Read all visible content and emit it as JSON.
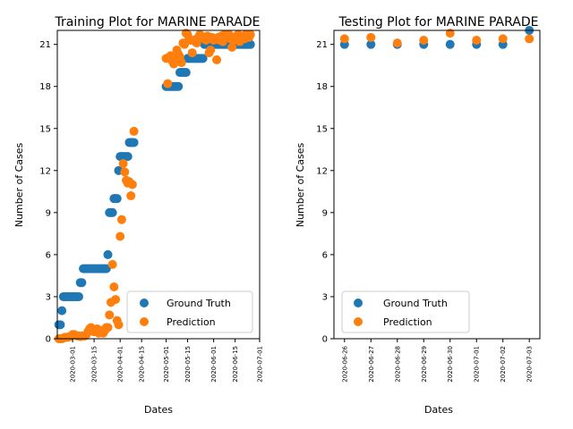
{
  "colors": {
    "ground_truth": "#1f77b4",
    "prediction": "#ff7f0e"
  },
  "chart_data": [
    {
      "type": "scatter",
      "title": "Training Plot for MARINE PARADE",
      "xlabel": "Dates",
      "ylabel": "Number of Cases",
      "ylim": [
        0,
        22
      ],
      "yticks": [
        0,
        3,
        6,
        9,
        12,
        15,
        18,
        21
      ],
      "xlim": [
        "2020-02-20",
        "2020-07-01"
      ],
      "xticks": [
        "2020-03-01",
        "2020-03-15",
        "2020-04-01",
        "2020-04-15",
        "2020-05-01",
        "2020-05-15",
        "2020-06-01",
        "2020-06-15",
        "2020-07-01"
      ],
      "legend": {
        "position": "lower-right",
        "entries": [
          "Ground Truth",
          "Prediction"
        ]
      },
      "series": [
        {
          "name": "Ground Truth",
          "color": "#1f77b4",
          "points": [
            [
              "2020-02-21",
              1
            ],
            [
              "2020-02-22",
              1
            ],
            [
              "2020-02-23",
              2
            ],
            [
              "2020-02-24",
              3
            ],
            [
              "2020-02-25",
              3
            ],
            [
              "2020-02-26",
              3
            ],
            [
              "2020-02-27",
              3
            ],
            [
              "2020-02-28",
              3
            ],
            [
              "2020-02-29",
              3
            ],
            [
              "2020-03-01",
              3
            ],
            [
              "2020-03-02",
              3
            ],
            [
              "2020-03-03",
              3
            ],
            [
              "2020-03-04",
              3
            ],
            [
              "2020-03-05",
              3
            ],
            [
              "2020-03-06",
              4
            ],
            [
              "2020-03-07",
              4
            ],
            [
              "2020-03-08",
              5
            ],
            [
              "2020-03-09",
              5
            ],
            [
              "2020-03-10",
              5
            ],
            [
              "2020-03-11",
              5
            ],
            [
              "2020-03-12",
              5
            ],
            [
              "2020-03-13",
              5
            ],
            [
              "2020-03-14",
              5
            ],
            [
              "2020-03-15",
              5
            ],
            [
              "2020-03-16",
              5
            ],
            [
              "2020-03-17",
              5
            ],
            [
              "2020-03-18",
              5
            ],
            [
              "2020-03-19",
              5
            ],
            [
              "2020-03-20",
              5
            ],
            [
              "2020-03-21",
              5
            ],
            [
              "2020-03-22",
              5
            ],
            [
              "2020-03-23",
              5
            ],
            [
              "2020-03-24",
              6
            ],
            [
              "2020-03-25",
              9
            ],
            [
              "2020-03-26",
              9
            ],
            [
              "2020-03-27",
              9
            ],
            [
              "2020-03-28",
              10
            ],
            [
              "2020-03-29",
              10
            ],
            [
              "2020-03-30",
              10
            ],
            [
              "2020-03-31",
              12
            ],
            [
              "2020-04-01",
              13
            ],
            [
              "2020-04-02",
              13
            ],
            [
              "2020-04-03",
              13
            ],
            [
              "2020-04-04",
              13
            ],
            [
              "2020-04-05",
              13
            ],
            [
              "2020-04-06",
              13
            ],
            [
              "2020-04-07",
              14
            ],
            [
              "2020-04-08",
              14
            ],
            [
              "2020-04-09",
              14
            ],
            [
              "2020-04-10",
              14
            ],
            [
              "2020-05-01",
              18
            ],
            [
              "2020-05-02",
              18
            ],
            [
              "2020-05-03",
              18
            ],
            [
              "2020-05-04",
              18
            ],
            [
              "2020-05-05",
              18
            ],
            [
              "2020-05-06",
              18
            ],
            [
              "2020-05-07",
              18
            ],
            [
              "2020-05-08",
              18
            ],
            [
              "2020-05-09",
              18
            ],
            [
              "2020-05-10",
              19
            ],
            [
              "2020-05-11",
              19
            ],
            [
              "2020-05-12",
              19
            ],
            [
              "2020-05-13",
              19
            ],
            [
              "2020-05-14",
              19
            ],
            [
              "2020-05-15",
              20
            ],
            [
              "2020-05-16",
              20
            ],
            [
              "2020-05-17",
              20
            ],
            [
              "2020-05-18",
              20
            ],
            [
              "2020-05-19",
              20
            ],
            [
              "2020-05-20",
              20
            ],
            [
              "2020-05-21",
              20
            ],
            [
              "2020-05-22",
              20
            ],
            [
              "2020-05-23",
              20
            ],
            [
              "2020-05-24",
              20
            ],
            [
              "2020-05-25",
              20
            ],
            [
              "2020-05-26",
              21
            ],
            [
              "2020-05-27",
              21
            ],
            [
              "2020-05-28",
              21
            ],
            [
              "2020-05-29",
              21
            ],
            [
              "2020-05-30",
              21
            ],
            [
              "2020-05-31",
              21
            ],
            [
              "2020-06-01",
              21
            ],
            [
              "2020-06-02",
              21
            ],
            [
              "2020-06-03",
              21
            ],
            [
              "2020-06-04",
              21
            ],
            [
              "2020-06-05",
              21
            ],
            [
              "2020-06-06",
              21
            ],
            [
              "2020-06-07",
              21
            ],
            [
              "2020-06-08",
              21
            ],
            [
              "2020-06-09",
              21
            ],
            [
              "2020-06-10",
              21
            ],
            [
              "2020-06-11",
              21
            ],
            [
              "2020-06-12",
              21
            ],
            [
              "2020-06-13",
              21
            ],
            [
              "2020-06-14",
              21
            ],
            [
              "2020-06-15",
              21
            ],
            [
              "2020-06-16",
              21
            ],
            [
              "2020-06-17",
              21
            ],
            [
              "2020-06-18",
              21
            ],
            [
              "2020-06-19",
              21
            ],
            [
              "2020-06-20",
              21
            ],
            [
              "2020-06-21",
              21
            ],
            [
              "2020-06-22",
              21
            ],
            [
              "2020-06-23",
              21
            ],
            [
              "2020-06-24",
              21
            ],
            [
              "2020-06-25",
              21
            ]
          ]
        },
        {
          "name": "Prediction",
          "color": "#ff7f0e",
          "points": [
            [
              "2020-02-21",
              0
            ],
            [
              "2020-02-22",
              0
            ],
            [
              "2020-02-23",
              0
            ],
            [
              "2020-02-24",
              0.05
            ],
            [
              "2020-02-25",
              0.1
            ],
            [
              "2020-02-26",
              0.1
            ],
            [
              "2020-02-27",
              0.1
            ],
            [
              "2020-02-28",
              0.15
            ],
            [
              "2020-02-29",
              0.2
            ],
            [
              "2020-03-01",
              0.3
            ],
            [
              "2020-03-02",
              0.3
            ],
            [
              "2020-03-03",
              0.25
            ],
            [
              "2020-03-04",
              0.2
            ],
            [
              "2020-03-05",
              0.2
            ],
            [
              "2020-03-06",
              0.15
            ],
            [
              "2020-03-07",
              0.2
            ],
            [
              "2020-03-08",
              0.2
            ],
            [
              "2020-03-09",
              0.2
            ],
            [
              "2020-03-10",
              0.3
            ],
            [
              "2020-03-11",
              0.5
            ],
            [
              "2020-03-12",
              0.7
            ],
            [
              "2020-03-13",
              0.8
            ],
            [
              "2020-03-14",
              0.6
            ],
            [
              "2020-03-15",
              0.5
            ],
            [
              "2020-03-16",
              0.6
            ],
            [
              "2020-03-17",
              0.7
            ],
            [
              "2020-03-18",
              0.4
            ],
            [
              "2020-03-19",
              0.5
            ],
            [
              "2020-03-20",
              0.6
            ],
            [
              "2020-03-21",
              0.4
            ],
            [
              "2020-03-22",
              0.6
            ],
            [
              "2020-03-23",
              0.8
            ],
            [
              "2020-03-24",
              0.8
            ],
            [
              "2020-03-25",
              1.7
            ],
            [
              "2020-03-26",
              2.6
            ],
            [
              "2020-03-27",
              5.3
            ],
            [
              "2020-03-28",
              3.7
            ],
            [
              "2020-03-29",
              2.8
            ],
            [
              "2020-03-30",
              1.3
            ],
            [
              "2020-03-31",
              1.0
            ],
            [
              "2020-04-01",
              7.3
            ],
            [
              "2020-04-02",
              8.5
            ],
            [
              "2020-04-03",
              12.5
            ],
            [
              "2020-04-04",
              11.9
            ],
            [
              "2020-04-05",
              11.3
            ],
            [
              "2020-04-06",
              11.1
            ],
            [
              "2020-04-07",
              11.2
            ],
            [
              "2020-04-08",
              10.2
            ],
            [
              "2020-04-09",
              11.0
            ],
            [
              "2020-04-10",
              14.8
            ],
            [
              "2020-05-01",
              20.0
            ],
            [
              "2020-05-02",
              18.2
            ],
            [
              "2020-05-03",
              20.1
            ],
            [
              "2020-05-04",
              20.2
            ],
            [
              "2020-05-05",
              19.8
            ],
            [
              "2020-05-06",
              19.6
            ],
            [
              "2020-05-07",
              19.8
            ],
            [
              "2020-05-08",
              20.6
            ],
            [
              "2020-05-09",
              20.3
            ],
            [
              "2020-05-10",
              20.1
            ],
            [
              "2020-05-11",
              19.7
            ],
            [
              "2020-05-12",
              21.1
            ],
            [
              "2020-05-13",
              21.0
            ],
            [
              "2020-05-14",
              21.8
            ],
            [
              "2020-05-15",
              21.7
            ],
            [
              "2020-05-16",
              21.4
            ],
            [
              "2020-05-17",
              21.3
            ],
            [
              "2020-05-18",
              20.4
            ],
            [
              "2020-05-19",
              21.3
            ],
            [
              "2020-05-20",
              21.2
            ],
            [
              "2020-05-21",
              21.1
            ],
            [
              "2020-05-22",
              21.5
            ],
            [
              "2020-05-23",
              21.7
            ],
            [
              "2020-05-24",
              21.6
            ],
            [
              "2020-05-25",
              21.5
            ],
            [
              "2020-05-26",
              21.4
            ],
            [
              "2020-05-27",
              21.3
            ],
            [
              "2020-05-28",
              21.6
            ],
            [
              "2020-05-29",
              20.4
            ],
            [
              "2020-05-30",
              20.6
            ],
            [
              "2020-05-31",
              21.5
            ],
            [
              "2020-06-01",
              21.3
            ],
            [
              "2020-06-02",
              21.4
            ],
            [
              "2020-06-03",
              19.9
            ],
            [
              "2020-06-04",
              21.5
            ],
            [
              "2020-06-05",
              21.3
            ],
            [
              "2020-06-06",
              21.6
            ],
            [
              "2020-06-07",
              21.2
            ],
            [
              "2020-06-08",
              21.7
            ],
            [
              "2020-06-09",
              21.5
            ],
            [
              "2020-06-10",
              21.6
            ],
            [
              "2020-06-11",
              21.7
            ],
            [
              "2020-06-12",
              21.4
            ],
            [
              "2020-06-13",
              20.8
            ],
            [
              "2020-06-14",
              21.3
            ],
            [
              "2020-06-15",
              21.5
            ],
            [
              "2020-06-16",
              21.6
            ],
            [
              "2020-06-17",
              21.7
            ],
            [
              "2020-06-18",
              21.2
            ],
            [
              "2020-06-19",
              21.5
            ],
            [
              "2020-06-20",
              21.6
            ],
            [
              "2020-06-21",
              21.4
            ],
            [
              "2020-06-22",
              21.7
            ],
            [
              "2020-06-23",
              21.6
            ],
            [
              "2020-06-24",
              21.5
            ],
            [
              "2020-06-25",
              21.7
            ]
          ]
        }
      ]
    },
    {
      "type": "scatter",
      "title": "Testing Plot for MARINE PARADE",
      "xlabel": "Dates",
      "ylabel": "Number of Cases",
      "ylim": [
        0,
        22
      ],
      "yticks": [
        0,
        3,
        6,
        9,
        12,
        15,
        18,
        21
      ],
      "xlim": [
        "2020-06-25.6",
        "2020-07-03.4"
      ],
      "xticks": [
        "2020-06-26",
        "2020-06-27",
        "2020-06-28",
        "2020-06-29",
        "2020-06-30",
        "2020-07-01",
        "2020-07-02",
        "2020-07-03"
      ],
      "legend": {
        "position": "lower-left",
        "entries": [
          "Ground Truth",
          "Prediction"
        ]
      },
      "series": [
        {
          "name": "Ground Truth",
          "color": "#1f77b4",
          "points": [
            [
              "2020-06-26",
              21
            ],
            [
              "2020-06-27",
              21
            ],
            [
              "2020-06-28",
              21
            ],
            [
              "2020-06-29",
              21
            ],
            [
              "2020-06-30",
              21
            ],
            [
              "2020-07-01",
              21
            ],
            [
              "2020-07-02",
              21
            ],
            [
              "2020-07-03",
              22
            ]
          ]
        },
        {
          "name": "Prediction",
          "color": "#ff7f0e",
          "points": [
            [
              "2020-06-26",
              21.4
            ],
            [
              "2020-06-27",
              21.5
            ],
            [
              "2020-06-28",
              21.1
            ],
            [
              "2020-06-29",
              21.3
            ],
            [
              "2020-06-30",
              21.8
            ],
            [
              "2020-07-01",
              21.3
            ],
            [
              "2020-07-02",
              21.4
            ],
            [
              "2020-07-03",
              21.4
            ]
          ]
        }
      ]
    }
  ]
}
